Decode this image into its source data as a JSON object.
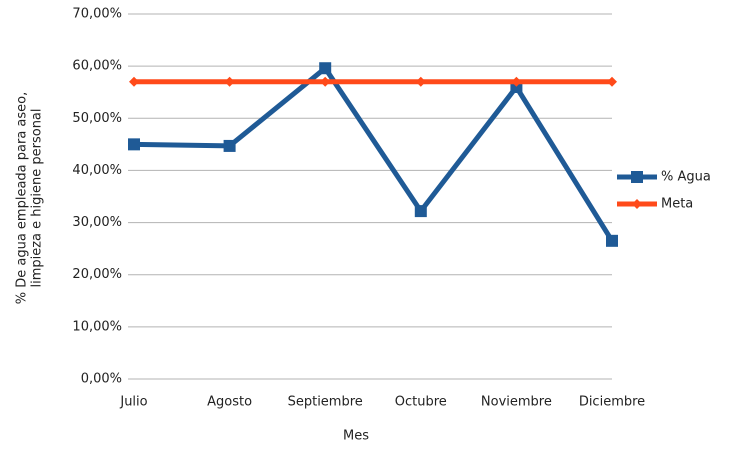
{
  "chart_data": {
    "type": "line",
    "x_label": "Mes",
    "y_label": [
      "% De agua empleada para aseo,",
      "limpieza e higiene personal"
    ],
    "categories": [
      "Julio",
      "Agosto",
      "Septiembre",
      "Octubre",
      "Noviembre",
      "Diciembre"
    ],
    "series": [
      {
        "name": "% Agua",
        "color": "#1f5a96",
        "marker": "square",
        "values": [
          45,
          44.7,
          59.6,
          32.2,
          56,
          26.5
        ]
      },
      {
        "name": "Meta",
        "color": "#ff4a1a",
        "marker": "diamond",
        "values": [
          57,
          57,
          57,
          57,
          57,
          57
        ]
      }
    ],
    "ylim": [
      0,
      70
    ],
    "yticks": [
      {
        "value": 0,
        "label": "0,00%"
      },
      {
        "value": 10,
        "label": "10,00%"
      },
      {
        "value": 20,
        "label": "20,00%"
      },
      {
        "value": 30,
        "label": "30,00%"
      },
      {
        "value": 40,
        "label": "40,00%"
      },
      {
        "value": 50,
        "label": "50,00%"
      },
      {
        "value": 60,
        "label": "60,00%"
      },
      {
        "value": 70,
        "label": "70,00%"
      }
    ],
    "grid": true,
    "legend": "right"
  }
}
